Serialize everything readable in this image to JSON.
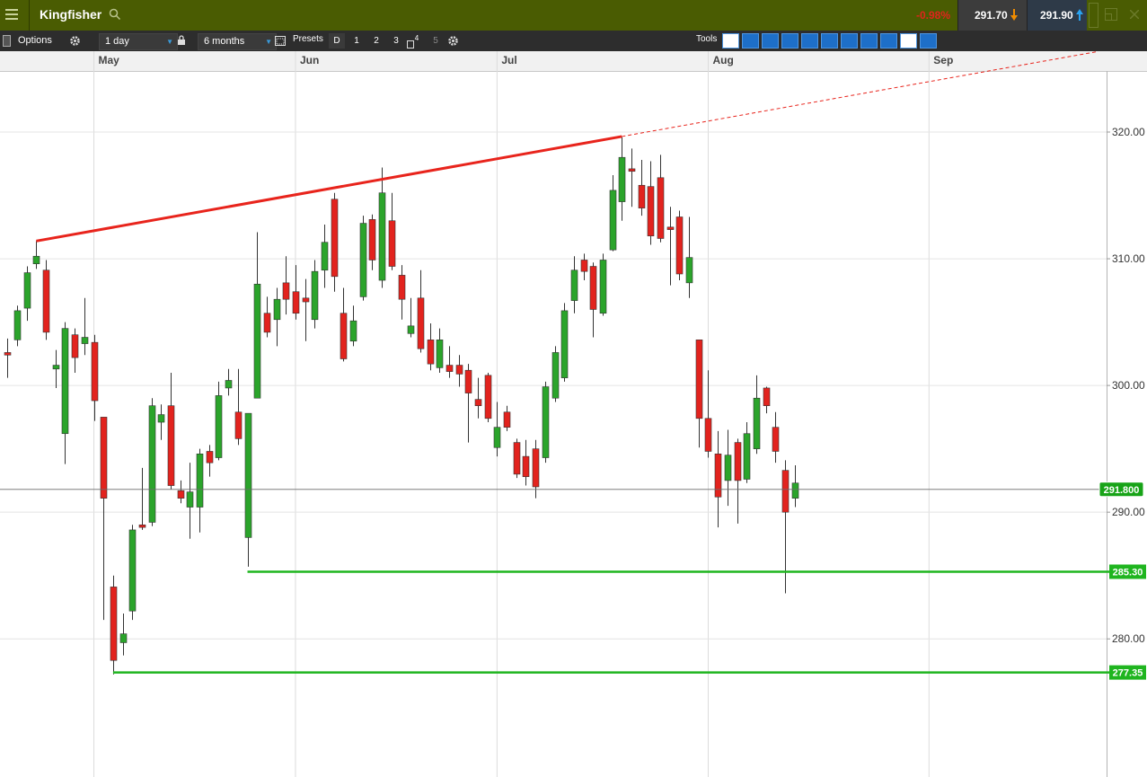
{
  "header": {
    "title": "Kingfisher",
    "change": "-0.98%",
    "sell": "291.70",
    "buy": "291.90"
  },
  "toolbar": {
    "options": "Options",
    "interval": "1 day",
    "range": "6 months",
    "presets": "Presets",
    "preset_buttons": [
      "D",
      "1",
      "2",
      "3",
      "4",
      "5"
    ],
    "tools": "Tools"
  },
  "chart_data": {
    "type": "candlestick",
    "categories": [
      null,
      null,
      null,
      null,
      null,
      null,
      null,
      null,
      null,
      "May",
      null,
      null,
      null,
      null,
      null,
      null,
      null,
      null,
      null,
      null,
      null,
      null,
      null,
      null,
      null,
      null,
      null,
      null,
      null,
      null,
      "Jun",
      null,
      null,
      null,
      null,
      null,
      null,
      null,
      null,
      null,
      null,
      null,
      null,
      null,
      null,
      null,
      null,
      null,
      null,
      null,
      null,
      "Jul",
      null,
      null,
      null,
      null,
      null,
      null,
      null,
      null,
      null,
      null,
      null,
      null,
      null,
      null,
      null,
      null,
      null,
      null,
      null,
      null,
      null,
      "Aug",
      null,
      null,
      null,
      null,
      null,
      null,
      null,
      null,
      null,
      null,
      null,
      null,
      null,
      null,
      null,
      null,
      null,
      null,
      null,
      null,
      null,
      null,
      "Sep",
      null,
      null,
      null,
      null,
      null,
      null,
      null,
      null,
      null,
      null,
      null,
      null,
      null,
      null,
      null,
      null,
      null,
      null
    ],
    "open": [
      302.6,
      303.6,
      306.1,
      309.6,
      309.1,
      301.3,
      296.2,
      304.0,
      303.3,
      303.4,
      297.5,
      284.1,
      279.7,
      282.2,
      289.0,
      289.2,
      297.1,
      298.4,
      291.7,
      290.4,
      290.4,
      294.8,
      294.3,
      299.8,
      297.9,
      288.0,
      299.0,
      305.7,
      305.2,
      308.1,
      307.4,
      306.9,
      305.2,
      309.1,
      314.7,
      305.7,
      303.5,
      307.0,
      313.1,
      308.3,
      313.0,
      308.7,
      304.1,
      306.9,
      303.6,
      301.4,
      301.6,
      301.6,
      301.2,
      298.9,
      300.8,
      295.1,
      297.9,
      295.5,
      294.4,
      295.0,
      294.3,
      299.0,
      300.6,
      306.7,
      309.9,
      309.4,
      305.7,
      310.7,
      314.5,
      317.1,
      315.8,
      315.7,
      316.4,
      312.5,
      313.3,
      308.1,
      303.6,
      297.4,
      294.6,
      292.5,
      295.5,
      292.6,
      295.0,
      299.8,
      296.7,
      293.3,
      291.1,
      null,
      null,
      null,
      null,
      null,
      null,
      null,
      null,
      null,
      null,
      null,
      null,
      null,
      null,
      null,
      null,
      null,
      null,
      null,
      null,
      null,
      null,
      null,
      null,
      null,
      null,
      null,
      null,
      null,
      null,
      null,
      null
    ],
    "high": [
      303.7,
      306.3,
      309.4,
      311.4,
      309.9,
      302.8,
      305.0,
      304.5,
      306.9,
      304.0,
      297.5,
      285.0,
      282.0,
      289.0,
      293.5,
      299.0,
      298.5,
      301.0,
      292.5,
      293.9,
      295.0,
      295.3,
      300.3,
      301.3,
      301.3,
      297.8,
      312.1,
      307.0,
      307.7,
      310.2,
      309.5,
      308.4,
      309.9,
      312.7,
      315.2,
      307.7,
      306.3,
      313.4,
      313.5,
      317.2,
      315.2,
      309.5,
      306.9,
      309.1,
      304.9,
      304.5,
      303.1,
      302.4,
      301.7,
      300.6,
      301.0,
      298.7,
      298.4,
      295.8,
      295.7,
      295.7,
      300.3,
      303.1,
      306.5,
      310.2,
      310.4,
      309.7,
      310.4,
      316.6,
      319.6,
      318.7,
      317.8,
      317.7,
      318.2,
      314.1,
      313.8,
      313.3,
      303.6,
      301.2,
      296.4,
      296.5,
      295.8,
      297.1,
      300.8,
      299.9,
      297.9,
      294.1,
      293.7,
      null,
      null,
      null,
      null,
      null,
      null,
      null,
      null,
      null,
      null,
      null,
      null,
      null,
      null,
      null,
      null,
      null,
      null,
      null,
      null,
      null,
      null,
      null,
      null,
      null,
      null,
      null,
      null,
      null,
      null,
      null,
      null
    ],
    "low": [
      300.6,
      303.1,
      305.1,
      309.2,
      303.6,
      299.8,
      293.8,
      301.0,
      302.4,
      297.2,
      281.5,
      277.2,
      278.7,
      281.5,
      288.6,
      288.9,
      295.7,
      291.8,
      290.7,
      287.9,
      288.4,
      292.8,
      294.1,
      299.2,
      295.3,
      285.7,
      299.0,
      303.8,
      303.1,
      305.6,
      305.2,
      303.5,
      304.5,
      307.7,
      307.4,
      301.9,
      303.1,
      306.7,
      309.1,
      307.7,
      309.1,
      305.2,
      303.8,
      302.6,
      301.2,
      301.0,
      300.6,
      299.9,
      295.5,
      297.4,
      297.1,
      294.4,
      296.4,
      292.7,
      292.1,
      291.1,
      293.9,
      298.7,
      300.3,
      305.7,
      308.3,
      303.8,
      305.5,
      310.6,
      313.0,
      314.1,
      313.4,
      311.1,
      311.3,
      307.9,
      308.3,
      306.9,
      295.1,
      294.3,
      288.8,
      290.5,
      289.1,
      292.3,
      294.6,
      297.8,
      293.9,
      283.6,
      290.4,
      null,
      null,
      null,
      null,
      null,
      null,
      null,
      null,
      null,
      null,
      null,
      null,
      null,
      null,
      null,
      null,
      null,
      null,
      null,
      null,
      null,
      null,
      null,
      null,
      null,
      null,
      null,
      null,
      null,
      null,
      null,
      null
    ],
    "close": [
      302.4,
      305.9,
      308.9,
      310.2,
      304.2,
      301.6,
      304.5,
      302.2,
      303.8,
      298.8,
      291.1,
      278.3,
      280.4,
      288.6,
      288.8,
      298.4,
      297.7,
      292.1,
      291.1,
      291.6,
      294.6,
      293.9,
      299.2,
      300.4,
      295.8,
      297.8,
      308.0,
      304.2,
      306.8,
      306.8,
      305.7,
      306.6,
      309.0,
      311.3,
      308.6,
      302.1,
      305.1,
      312.8,
      309.9,
      315.2,
      309.4,
      306.8,
      304.7,
      302.9,
      301.7,
      303.6,
      301.1,
      300.9,
      299.4,
      298.4,
      297.4,
      296.7,
      296.7,
      293.0,
      292.8,
      292.0,
      299.9,
      302.6,
      305.9,
      309.1,
      309.0,
      306.0,
      309.9,
      315.4,
      318.0,
      316.9,
      314.0,
      311.8,
      311.6,
      312.3,
      308.8,
      310.1,
      297.4,
      294.8,
      291.2,
      294.5,
      292.5,
      296.2,
      299.0,
      298.4,
      294.8,
      290.0,
      292.3,
      null,
      null,
      null,
      null,
      null,
      null,
      null,
      null,
      null,
      null,
      null,
      null,
      null,
      null,
      null,
      null,
      null,
      null,
      null,
      null,
      null,
      null,
      null,
      null,
      null,
      null,
      null,
      null,
      null,
      null,
      null,
      null
    ],
    "up_color": "#2ba42b",
    "down_color": "#e2231e",
    "ylim": [
      269.1,
      324.75
    ],
    "yticks": [
      {
        "value": 280,
        "label": "280.00"
      },
      {
        "value": 290,
        "label": "290.00"
      },
      {
        "value": 300,
        "label": "300.00"
      },
      {
        "value": 310,
        "label": "310.00"
      },
      {
        "value": 320,
        "label": "320.00"
      }
    ],
    "grid": true,
    "trend_line": {
      "x": [
        3,
        64
      ],
      "values": [
        311.4,
        319.65
      ],
      "color": "#e8241c"
    },
    "levels": [
      {
        "value": 285.3,
        "label": "285.30",
        "x": 25,
        "color": "#1fb51f"
      },
      {
        "value": 277.35,
        "label": "277.35",
        "x": 11,
        "color": "#1fb51f"
      }
    ],
    "price_line": {
      "value": 291.8,
      "label": "291.800",
      "color": "#6b6b6b",
      "label_color": "#17a317"
    }
  }
}
